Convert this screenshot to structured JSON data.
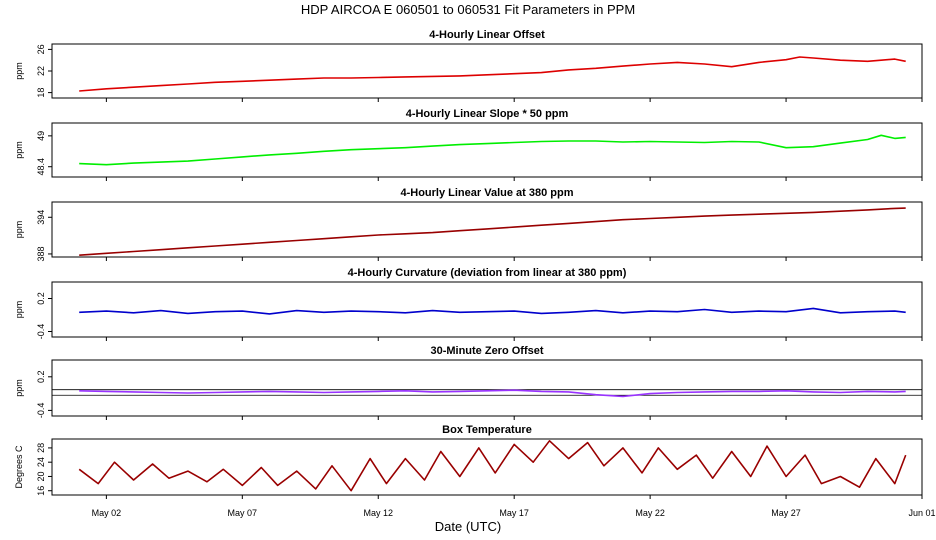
{
  "figure": {
    "title": "HDP    AIRCOA E    060501 to 060531    Fit Parameters in PPM",
    "xlabel": "Date (UTC)",
    "x_tick_labels": [
      "May 02",
      "May 07",
      "May 12",
      "May 17",
      "May 22",
      "May 27",
      "Jun 01"
    ]
  },
  "chart_data": [
    {
      "type": "line",
      "title": "4-Hourly Linear Offset",
      "ylabel": "ppm",
      "ylim": [
        17,
        27
      ],
      "yticks": [
        18,
        22,
        26
      ],
      "color": "#dd0000",
      "x": [
        1.0,
        2.0,
        3.0,
        4.0,
        5.0,
        6.0,
        7.0,
        8.0,
        9.0,
        10.0,
        11.0,
        12.0,
        13.0,
        14.0,
        15.0,
        16.0,
        17.0,
        18.0,
        19.0,
        20.0,
        21.0,
        22.0,
        23.0,
        24.0,
        25.0,
        26.0,
        27.0,
        27.5,
        28.0,
        29.0,
        30.0,
        30.5,
        31.0,
        31.4
      ],
      "values": [
        18.3,
        18.7,
        19.0,
        19.3,
        19.6,
        19.9,
        20.1,
        20.3,
        20.5,
        20.7,
        20.7,
        20.8,
        20.9,
        21.0,
        21.1,
        21.3,
        21.5,
        21.7,
        22.2,
        22.5,
        22.9,
        23.3,
        23.6,
        23.3,
        22.8,
        23.6,
        24.1,
        24.6,
        24.4,
        24.0,
        23.8,
        24.0,
        24.2,
        23.8
      ]
    },
    {
      "type": "line",
      "title": "4-Hourly Linear Slope * 50 ppm",
      "ylabel": "ppm",
      "ylim": [
        48.2,
        49.25
      ],
      "yticks": [
        48.4,
        49.0
      ],
      "color": "#00ee00",
      "x": [
        1.0,
        2.0,
        3.0,
        4.0,
        5.0,
        6.0,
        7.0,
        8.0,
        9.0,
        10.0,
        11.0,
        12.0,
        13.0,
        14.0,
        15.0,
        16.0,
        17.0,
        18.0,
        19.0,
        20.0,
        21.0,
        22.0,
        23.0,
        24.0,
        25.0,
        26.0,
        27.0,
        28.0,
        29.0,
        30.0,
        30.5,
        31.0,
        31.4
      ],
      "values": [
        48.46,
        48.44,
        48.47,
        48.49,
        48.51,
        48.55,
        48.59,
        48.63,
        48.66,
        48.7,
        48.73,
        48.75,
        48.77,
        48.8,
        48.83,
        48.85,
        48.87,
        48.89,
        48.9,
        48.9,
        48.88,
        48.89,
        48.88,
        48.87,
        48.89,
        48.88,
        48.77,
        48.79,
        48.86,
        48.93,
        49.01,
        48.95,
        48.97
      ]
    },
    {
      "type": "line",
      "title": "4-Hourly Linear Value at 380 ppm",
      "ylabel": "ppm",
      "ylim": [
        387.5,
        396.5
      ],
      "yticks": [
        388,
        394
      ],
      "color": "#990000",
      "x": [
        1.0,
        2.0,
        3.0,
        4.0,
        5.0,
        6.0,
        7.0,
        8.0,
        9.0,
        10.0,
        11.0,
        12.0,
        13.0,
        14.0,
        15.0,
        16.0,
        17.0,
        18.0,
        19.0,
        20.0,
        21.0,
        22.0,
        23.0,
        24.0,
        25.0,
        26.0,
        27.0,
        28.0,
        29.0,
        30.0,
        31.0,
        31.4
      ],
      "values": [
        387.8,
        388.1,
        388.4,
        388.7,
        389.0,
        389.3,
        389.6,
        389.9,
        390.2,
        390.5,
        390.8,
        391.1,
        391.3,
        391.5,
        391.8,
        392.1,
        392.4,
        392.7,
        393.0,
        393.3,
        393.6,
        393.8,
        394.0,
        394.2,
        394.35,
        394.5,
        394.65,
        394.8,
        395.0,
        395.2,
        395.45,
        395.5
      ]
    },
    {
      "type": "line",
      "title": "4-Hourly Curvature (deviation from linear at 380 ppm)",
      "ylabel": "ppm",
      "ylim": [
        -0.5,
        0.5
      ],
      "yticks": [
        -0.4,
        0.2
      ],
      "color": "#0000cc",
      "x": [
        1.0,
        2.0,
        3.0,
        4.0,
        5.0,
        6.0,
        7.0,
        8.0,
        9.0,
        10.0,
        11.0,
        12.0,
        13.0,
        14.0,
        15.0,
        16.0,
        17.0,
        18.0,
        19.0,
        20.0,
        21.0,
        22.0,
        23.0,
        24.0,
        25.0,
        26.0,
        27.0,
        28.0,
        29.0,
        30.0,
        31.0,
        31.4
      ],
      "values": [
        -0.05,
        -0.03,
        -0.06,
        -0.02,
        -0.07,
        -0.04,
        -0.03,
        -0.08,
        -0.02,
        -0.05,
        -0.03,
        -0.04,
        -0.06,
        -0.02,
        -0.05,
        -0.04,
        -0.03,
        -0.07,
        -0.05,
        -0.02,
        -0.06,
        -0.03,
        -0.04,
        0.0,
        -0.05,
        -0.03,
        -0.04,
        0.02,
        -0.06,
        -0.04,
        -0.03,
        -0.05
      ]
    },
    {
      "type": "line",
      "title": "30-Minute Zero Offset",
      "ylabel": "ppm",
      "ylim": [
        -0.5,
        0.5
      ],
      "yticks": [
        -0.4,
        0.2
      ],
      "reference_lines": [
        -0.03,
        -0.13
      ],
      "color": "#9933ff",
      "x": [
        1.0,
        2.0,
        3.0,
        4.0,
        5.0,
        6.0,
        7.0,
        8.0,
        9.0,
        10.0,
        11.0,
        12.0,
        13.0,
        14.0,
        15.0,
        16.0,
        17.0,
        18.0,
        19.0,
        20.0,
        21.0,
        22.0,
        23.0,
        24.0,
        25.0,
        26.0,
        27.0,
        28.0,
        29.0,
        30.0,
        31.0,
        31.4
      ],
      "values": [
        -0.05,
        -0.06,
        -0.07,
        -0.08,
        -0.09,
        -0.08,
        -0.07,
        -0.06,
        -0.07,
        -0.08,
        -0.07,
        -0.06,
        -0.05,
        -0.07,
        -0.06,
        -0.05,
        -0.04,
        -0.06,
        -0.07,
        -0.12,
        -0.15,
        -0.1,
        -0.08,
        -0.07,
        -0.06,
        -0.06,
        -0.05,
        -0.07,
        -0.08,
        -0.06,
        -0.07,
        -0.06
      ]
    },
    {
      "type": "line",
      "title": "Box Temperature",
      "ylabel": "Degrees C",
      "ylim": [
        14.8,
        30.5
      ],
      "yticks": [
        16,
        20,
        24,
        28
      ],
      "color": "#990000",
      "x": [
        1.0,
        1.7,
        2.3,
        3.0,
        3.7,
        4.3,
        5.0,
        5.7,
        6.3,
        7.0,
        7.7,
        8.3,
        9.0,
        9.7,
        10.3,
        11.0,
        11.7,
        12.3,
        13.0,
        13.7,
        14.3,
        15.0,
        15.7,
        16.3,
        17.0,
        17.7,
        18.3,
        19.0,
        19.7,
        20.3,
        21.0,
        21.7,
        22.3,
        23.0,
        23.7,
        24.3,
        25.0,
        25.7,
        26.3,
        27.0,
        27.7,
        28.3,
        29.0,
        29.7,
        30.3,
        31.0,
        31.4
      ],
      "values": [
        22.0,
        18.0,
        24.0,
        19.0,
        23.5,
        19.5,
        21.5,
        18.5,
        22.0,
        17.5,
        22.5,
        17.5,
        21.5,
        16.5,
        23.0,
        16.0,
        25.0,
        18.0,
        25.0,
        19.0,
        27.0,
        20.0,
        28.0,
        21.0,
        29.0,
        24.0,
        30.0,
        25.0,
        29.5,
        23.0,
        28.0,
        21.0,
        28.0,
        22.0,
        26.0,
        19.5,
        27.0,
        20.0,
        28.5,
        20.0,
        26.0,
        18.0,
        20.0,
        17.0,
        25.0,
        18.0,
        26.0
      ]
    }
  ]
}
